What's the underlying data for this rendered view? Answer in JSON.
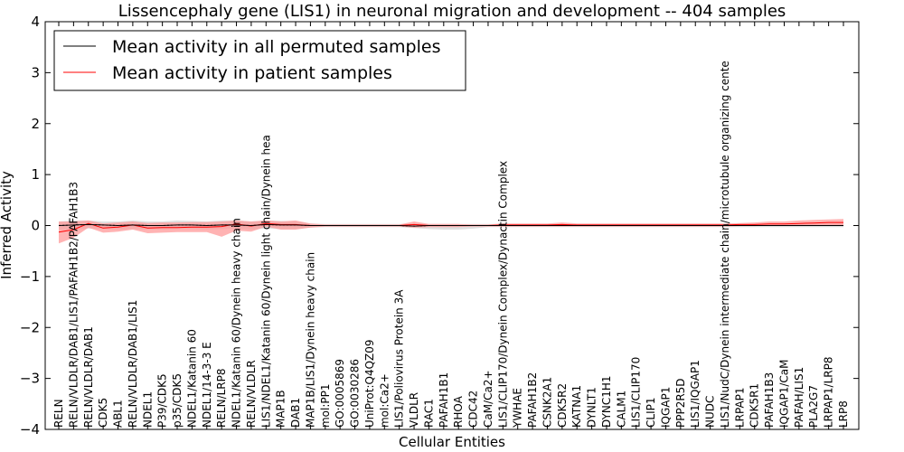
{
  "chart_data": {
    "type": "line",
    "title": "Lissencephaly gene (LIS1) in neuronal migration and development -- 404 samples",
    "xlabel": "Cellular Entities",
    "ylabel": "Inferred Activity",
    "ylim": [
      -4,
      4
    ],
    "yticks": [
      -4,
      -3,
      -2,
      -1,
      0,
      1,
      2,
      3,
      4
    ],
    "ytick_labels": [
      "−4",
      "−3",
      "−2",
      "−1",
      "0",
      "1",
      "2",
      "3",
      "4"
    ],
    "grid": false,
    "legend_position": "top-left",
    "colors": {
      "permuted": "#000000",
      "patient": "#ff0000",
      "patient_band": "#ff9999",
      "permuted_band": "#cccccc"
    },
    "categories": [
      "RELN",
      "RELN/VLDLR/DAB1/LIS1/PAFAH1B2/PAFAH1B3",
      "RELN/VLDLR/DAB1",
      "CDK5",
      "ABL1",
      "RELN/VLDLR/DAB1/LIS1",
      "NDEL1",
      "P39/CDK5",
      "p35/CDK5",
      "NDEL1/Katanin 60",
      "NDEL1/14-3-3 E",
      "RELN/LRP8",
      "NDEL1/Katanin 60/Dynein heavy chain",
      "RELN/VLDLR",
      "LIS1/NDEL1/Katanin 60/Dynein light chain/Dynein hea",
      "MAP1B",
      "DAB1",
      "MAP1B/LIS1/Dynein heavy chain",
      "mol:PP1",
      "GO:0005869",
      "GO:0030286",
      "UniProt:Q4QZ09",
      "mol:Ca2+",
      "LIS1/Poliovirus Protein 3A",
      "VLDLR",
      "RAC1",
      "PAFAH1B1",
      "RHOA",
      "CDC42",
      "CaM/Ca2+",
      "LIS1/CLIP170/Dynein Complex/Dynactin Complex",
      "YWHAE",
      "PAFAH1B2",
      "CSNK2A1",
      "CDK5R2",
      "KATNA1",
      "DYNLT1",
      "DYNC1H1",
      "CALM1",
      "LIS1/CLIP170",
      "CLIP1",
      "IQGAP1",
      "PPP2R5D",
      "LIS1/IQGAP1",
      "NUDC",
      "LIS1/NudC/Dynein intermediate chain/microtubule organizing cente",
      "LRPAP1",
      "CDK5R1",
      "PAFAH1B3",
      "IQGAP1/CaM",
      "PAFAH/LIS1",
      "PLA2G7",
      "LRPAP1/LRP8",
      "LRP8"
    ],
    "series": [
      {
        "name": "Mean activity in all permuted samples",
        "color": "#000000",
        "values": [
          0.0,
          0.01,
          0.02,
          0.01,
          0.0,
          0.01,
          0.0,
          0.0,
          0.01,
          0.01,
          0.0,
          0.01,
          0.01,
          0.0,
          0.02,
          0.01,
          0.01,
          0.0,
          0.0,
          0.0,
          0.0,
          0.0,
          0.0,
          0.0,
          -0.01,
          0.0,
          0.0,
          0.0,
          0.0,
          0.0,
          0.0,
          0.0,
          0.0,
          0.0,
          0.0,
          0.0,
          0.0,
          0.0,
          0.0,
          0.0,
          0.0,
          0.0,
          0.0,
          0.0,
          0.0,
          0.0,
          0.0,
          0.0,
          0.0,
          0.0,
          0.0,
          0.0,
          0.0,
          0.0
        ]
      },
      {
        "name": "Mean activity in patient samples",
        "color": "#ff0000",
        "values": [
          -0.13,
          -0.08,
          0.04,
          -0.05,
          -0.03,
          0.01,
          -0.05,
          -0.04,
          -0.04,
          -0.03,
          -0.03,
          -0.02,
          0.03,
          -0.01,
          0.04,
          0.02,
          0.02,
          0.0,
          0.0,
          0.0,
          0.0,
          0.0,
          0.0,
          0.0,
          0.02,
          0.0,
          0.0,
          0.0,
          0.0,
          0.0,
          0.01,
          0.01,
          0.01,
          0.01,
          0.02,
          0.01,
          0.01,
          0.01,
          0.01,
          0.01,
          0.01,
          0.01,
          0.01,
          0.01,
          0.01,
          0.01,
          0.02,
          0.02,
          0.03,
          0.03,
          0.04,
          0.05,
          0.06,
          0.06
        ]
      }
    ],
    "patient_band": {
      "upper": [
        0.08,
        0.08,
        0.1,
        0.04,
        0.06,
        0.08,
        0.05,
        0.06,
        0.06,
        0.07,
        0.07,
        0.08,
        0.1,
        0.08,
        0.1,
        0.08,
        0.1,
        0.04,
        0.02,
        0.02,
        0.02,
        0.02,
        0.02,
        0.02,
        0.08,
        0.03,
        0.03,
        0.03,
        0.02,
        0.02,
        0.04,
        0.04,
        0.04,
        0.04,
        0.06,
        0.04,
        0.04,
        0.04,
        0.04,
        0.04,
        0.04,
        0.04,
        0.04,
        0.04,
        0.04,
        0.04,
        0.05,
        0.06,
        0.08,
        0.08,
        0.1,
        0.11,
        0.12,
        0.13
      ],
      "lower": [
        -0.35,
        -0.24,
        -0.04,
        -0.14,
        -0.12,
        -0.08,
        -0.15,
        -0.14,
        -0.13,
        -0.13,
        -0.13,
        -0.22,
        -0.1,
        -0.12,
        -0.02,
        -0.08,
        -0.08,
        -0.04,
        -0.02,
        -0.02,
        -0.02,
        -0.02,
        -0.02,
        -0.02,
        -0.04,
        -0.03,
        -0.03,
        -0.03,
        -0.02,
        -0.02,
        -0.02,
        -0.02,
        -0.02,
        -0.02,
        -0.02,
        -0.02,
        -0.02,
        -0.02,
        -0.02,
        -0.02,
        -0.02,
        -0.02,
        -0.02,
        -0.02,
        -0.02,
        -0.02,
        -0.01,
        -0.01,
        0.0,
        0.0,
        0.0,
        0.0,
        0.0,
        0.0
      ]
    },
    "permuted_band": {
      "upper": [
        0.08,
        0.1,
        0.1,
        0.08,
        0.08,
        0.1,
        0.08,
        0.08,
        0.1,
        0.09,
        0.08,
        0.1,
        0.1,
        0.08,
        0.1,
        0.09,
        0.08,
        0.04,
        0.03,
        0.03,
        0.03,
        0.03,
        0.03,
        0.03,
        0.03,
        0.03,
        0.03,
        0.03,
        0.03,
        0.03,
        0.03,
        0.03,
        0.03,
        0.03,
        0.03,
        0.03,
        0.03,
        0.03,
        0.03,
        0.03,
        0.03,
        0.03,
        0.03,
        0.03,
        0.03,
        0.03,
        0.03,
        0.03,
        0.03,
        0.03,
        0.03,
        0.03,
        0.03,
        0.03
      ],
      "lower": [
        -0.08,
        -0.08,
        -0.06,
        -0.07,
        -0.08,
        -0.07,
        -0.08,
        -0.08,
        -0.07,
        -0.07,
        -0.08,
        -0.07,
        -0.06,
        -0.08,
        -0.06,
        -0.07,
        -0.07,
        -0.04,
        -0.03,
        -0.03,
        -0.03,
        -0.03,
        -0.03,
        -0.03,
        -0.05,
        -0.07,
        -0.08,
        -0.08,
        -0.06,
        -0.03,
        -0.03,
        -0.03,
        -0.03,
        -0.03,
        -0.03,
        -0.03,
        -0.03,
        -0.03,
        -0.03,
        -0.03,
        -0.03,
        -0.03,
        -0.03,
        -0.03,
        -0.03,
        -0.03,
        -0.03,
        -0.03,
        -0.03,
        -0.03,
        -0.03,
        -0.03,
        -0.03,
        -0.03
      ]
    }
  }
}
